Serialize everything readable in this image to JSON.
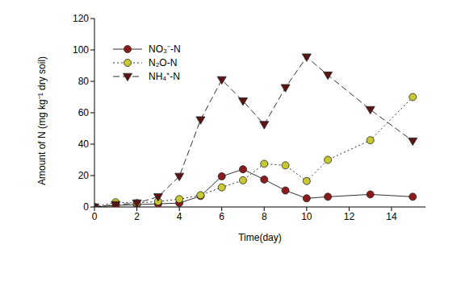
{
  "chart_data": {
    "type": "line",
    "x_label": "Time(day)",
    "y_label": "Amount of N (mg kg⁻¹ dry soil)",
    "x": [
      0,
      1,
      2,
      3,
      4,
      5,
      6,
      7,
      8,
      9,
      10,
      11,
      13,
      15
    ],
    "xlim": [
      0,
      15.6
    ],
    "xticks": [
      0,
      2,
      4,
      6,
      8,
      10,
      12,
      14
    ],
    "ylim": [
      0,
      120
    ],
    "yticks": [
      0,
      20,
      40,
      60,
      80,
      100,
      120
    ],
    "legend": "upper left",
    "series": [
      {
        "name": "NO₃⁻-N",
        "color": "#8b1a1a",
        "marker": "circle",
        "line_style": "solid",
        "values": [
          0,
          1,
          1.5,
          2,
          2.5,
          7,
          19.5,
          24,
          17.5,
          10.5,
          5.5,
          6.5,
          8,
          6.5
        ]
      },
      {
        "name": "N₂O-N",
        "color": "#c8c832",
        "marker": "circle",
        "line_style": "dotted",
        "values": [
          0,
          3,
          2.5,
          3.5,
          5,
          7.5,
          12.5,
          17,
          27.5,
          26.5,
          16.5,
          30,
          42.5,
          70
        ]
      },
      {
        "name": "NH₄⁺-N",
        "color": "#5a1414",
        "marker": "triangle-down",
        "line_style": "dashed",
        "values": [
          0,
          1.5,
          2.5,
          6.5,
          19.5,
          55.5,
          81,
          67.5,
          52.5,
          76,
          95.5,
          84,
          62,
          42
        ]
      }
    ]
  }
}
